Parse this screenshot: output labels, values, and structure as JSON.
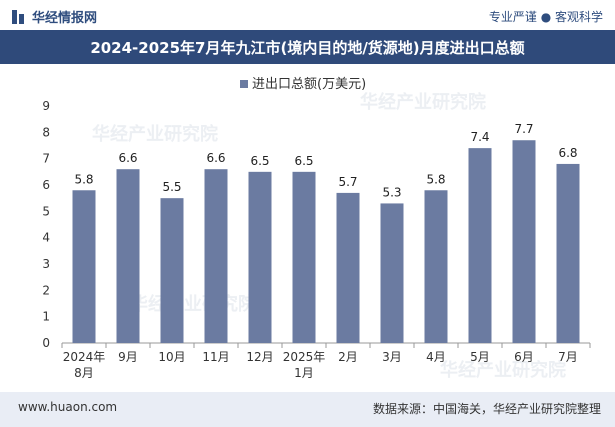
{
  "header": {
    "brand": "华经情报网",
    "slogan": "专业严谨 ● 客观科学"
  },
  "footer": {
    "url": "www.huaon.com",
    "source": "数据来源：中国海关，华经产业研究院整理"
  },
  "watermark": "华经产业研究院",
  "colors": {
    "bar": "#6b7ba1",
    "title_bg": "#2f4a7a",
    "footer_bg": "#e9edf5"
  },
  "chart_data": {
    "type": "bar",
    "title": "2024-2025年7月年九江市(境内目的地/货源地)月度进出口总额",
    "legend": "进出口总额(万美元)",
    "categories": [
      "2024年\n8月",
      "9月",
      "10月",
      "11月",
      "12月",
      "2025年\n1月",
      "2月",
      "3月",
      "4月",
      "5月",
      "6月",
      "7月"
    ],
    "values": [
      5.8,
      6.6,
      5.5,
      6.6,
      6.5,
      6.5,
      5.7,
      5.3,
      5.8,
      7.4,
      7.7,
      6.8
    ],
    "value_labels": [
      "5.8",
      "6.6",
      "5.5",
      "6.6",
      "6.5",
      "6.5",
      "5.7",
      "5.3",
      "5.8",
      "7.4",
      "7.7",
      "6.8"
    ],
    "ylim": [
      0,
      9
    ],
    "yticks": [
      "0",
      "1",
      "2",
      "3",
      "4",
      "5",
      "6",
      "7",
      "8",
      "9"
    ]
  }
}
